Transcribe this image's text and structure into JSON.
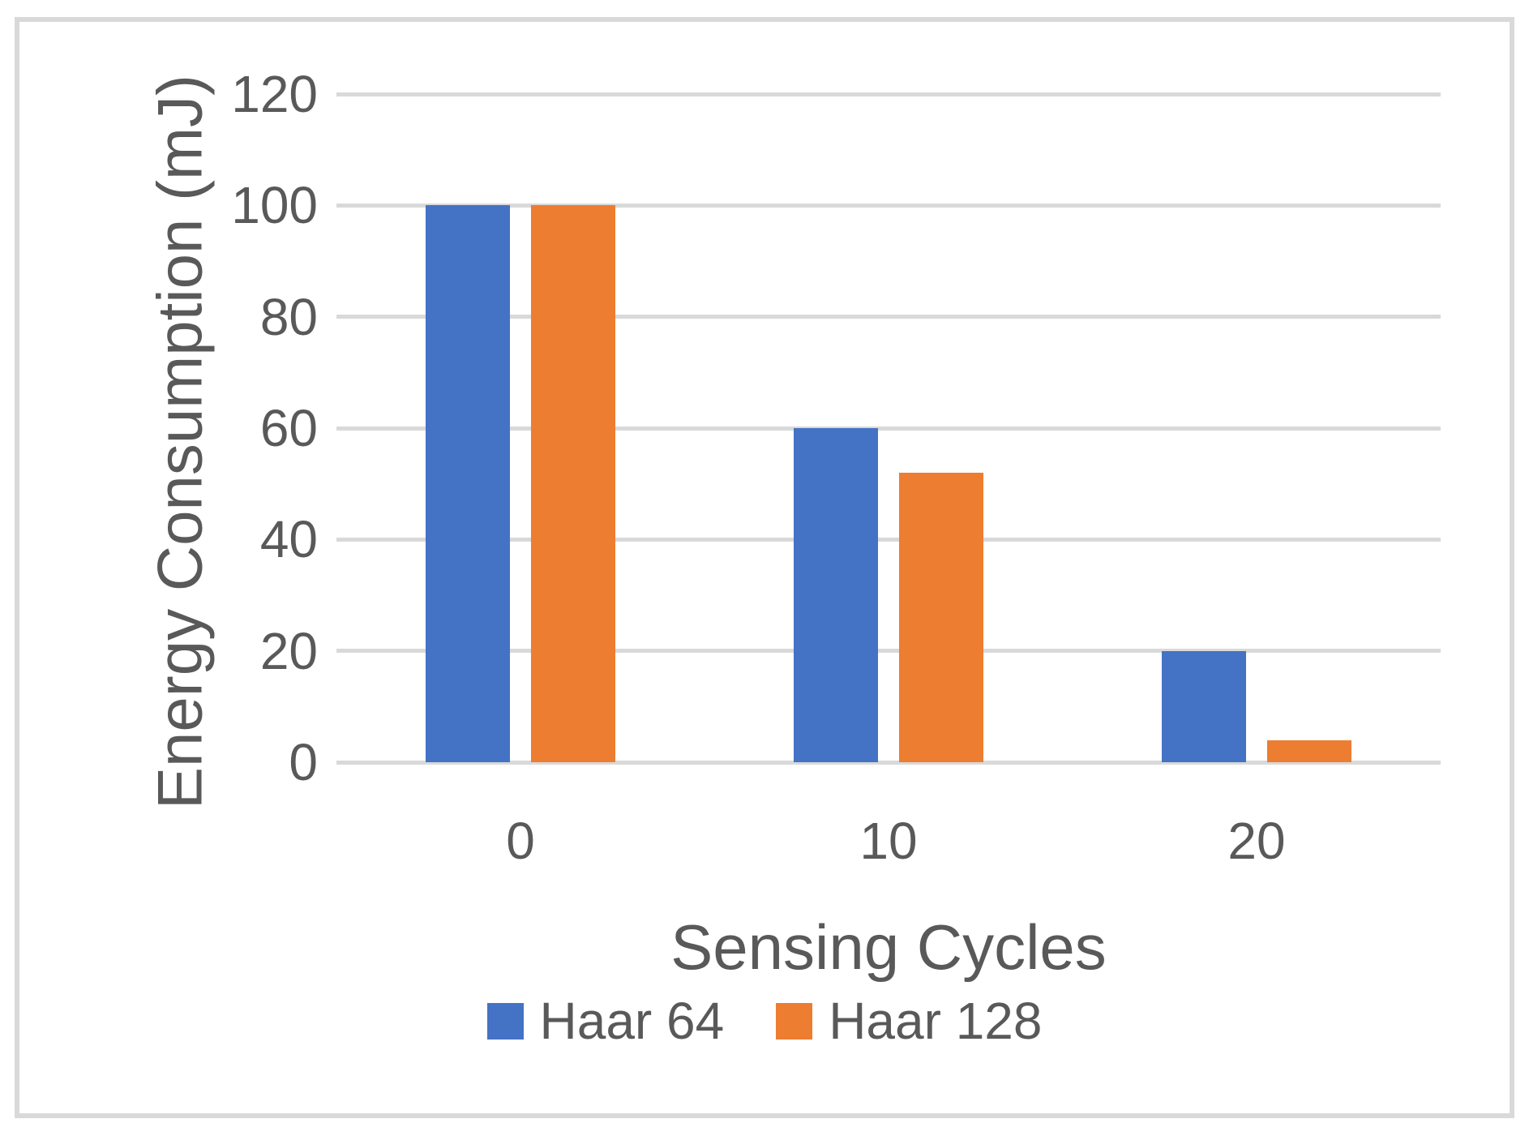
{
  "chart_data": {
    "type": "bar",
    "categories": [
      "0",
      "10",
      "20"
    ],
    "series": [
      {
        "name": "Haar 64",
        "color": "#4472C4",
        "values": [
          100,
          60,
          20
        ]
      },
      {
        "name": "Haar 128",
        "color": "#ED7D31",
        "values": [
          100,
          52,
          4
        ]
      }
    ],
    "xlabel": "Sensing Cycles",
    "ylabel": "Energy Consumption (mJ)",
    "ylim": [
      0,
      120
    ],
    "yticks": [
      0,
      20,
      40,
      60,
      80,
      100,
      120
    ],
    "grid": true,
    "legend_position": "bottom",
    "colors": {
      "text": "#595959",
      "gridline": "#D9D9D9",
      "border": "#D9D9D9",
      "background": "#FFFFFF"
    }
  }
}
